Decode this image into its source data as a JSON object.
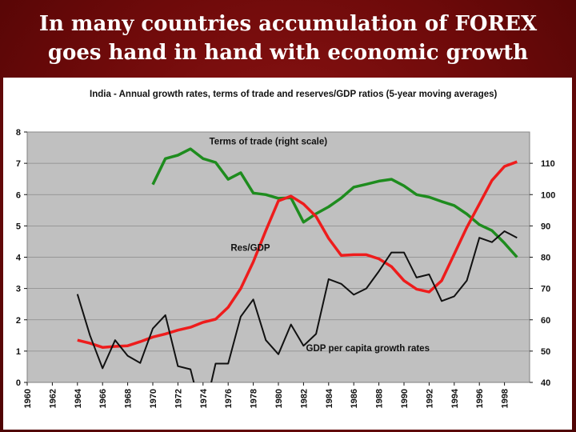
{
  "slide": {
    "title_line1": "In many countries accumulation of FOREX",
    "title_line2": "goes hand in hand with economic growth"
  },
  "chart_data": {
    "type": "line",
    "title": "India  - Annual growth rates, terms of trade and reserves/GDP ratios (5-year moving averages)",
    "x_ticks": [
      "1960",
      "1962",
      "1964",
      "1966",
      "1968",
      "1970",
      "1972",
      "1974",
      "1976",
      "1978",
      "1980",
      "1982",
      "1984",
      "1986",
      "1988",
      "1990",
      "1992",
      "1994",
      "1996",
      "1998"
    ],
    "xlim": [
      1960,
      2000
    ],
    "ylim_left": [
      0,
      8
    ],
    "y_ticks_left": [
      "0",
      "1",
      "2",
      "3",
      "4",
      "5",
      "6",
      "7",
      "8"
    ],
    "ylim_right": [
      40,
      120
    ],
    "y_ticks_right": [
      "40",
      "50",
      "60",
      "70",
      "80",
      "90",
      "100",
      "110"
    ],
    "grid": "horizontal",
    "background": "#c0c0c0",
    "series": [
      {
        "name": "Terms of trade (right scale)",
        "axis": "right",
        "color": "#1e8c1e",
        "x": [
          1970,
          1971,
          1972,
          1973,
          1974,
          1975,
          1976,
          1977,
          1978,
          1979,
          1980,
          1981,
          1982,
          1983,
          1984,
          1985,
          1986,
          1987,
          1988,
          1989,
          1990,
          1991,
          1992,
          1993,
          1994,
          1995,
          1996,
          1997,
          1998,
          1999
        ],
        "y": [
          103.2,
          111.5,
          112.6,
          114.6,
          111.5,
          110.3,
          104.9,
          107.0,
          100.5,
          100.0,
          98.8,
          99.0,
          91.2,
          93.9,
          96.1,
          98.9,
          102.4,
          103.3,
          104.3,
          104.9,
          102.8,
          100.0,
          99.2,
          97.8,
          96.5,
          93.8,
          90.4,
          88.5,
          84.5,
          80.0
        ]
      },
      {
        "name": "Res/GDP",
        "axis": "left",
        "color": "#ee1c1c",
        "x": [
          1964,
          1965,
          1966,
          1967,
          1968,
          1969,
          1970,
          1971,
          1972,
          1973,
          1974,
          1975,
          1976,
          1977,
          1978,
          1979,
          1980,
          1981,
          1982,
          1983,
          1984,
          1985,
          1986,
          1987,
          1988,
          1989,
          1990,
          1991,
          1992,
          1993,
          1994,
          1995,
          1996,
          1997,
          1998,
          1999
        ],
        "y": [
          1.35,
          1.25,
          1.12,
          1.15,
          1.17,
          1.3,
          1.45,
          1.55,
          1.67,
          1.76,
          1.92,
          2.02,
          2.4,
          3.0,
          3.85,
          4.85,
          5.8,
          5.95,
          5.7,
          5.3,
          4.6,
          4.06,
          4.08,
          4.08,
          3.95,
          3.7,
          3.25,
          2.98,
          2.89,
          3.25,
          4.1,
          4.95,
          5.7,
          6.45,
          6.9,
          7.05
        ]
      },
      {
        "name": "GDP per capita growth rates",
        "axis": "left",
        "color": "#111111",
        "x": [
          1964,
          1965,
          1966,
          1967,
          1968,
          1969,
          1970,
          1971,
          1972,
          1973,
          1974,
          1975,
          1976,
          1977,
          1978,
          1979,
          1980,
          1981,
          1982,
          1983,
          1984,
          1985,
          1986,
          1987,
          1988,
          1989,
          1990,
          1991,
          1992,
          1993,
          1994,
          1995,
          1996,
          1997,
          1998,
          1999
        ],
        "y": [
          2.82,
          1.5,
          0.45,
          1.35,
          0.85,
          0.62,
          1.72,
          2.15,
          0.52,
          0.42,
          -1.15,
          0.6,
          0.6,
          2.1,
          2.65,
          1.35,
          0.9,
          1.85,
          1.17,
          1.55,
          3.3,
          3.15,
          2.8,
          3.0,
          3.55,
          4.15,
          4.15,
          3.35,
          3.45,
          2.6,
          2.75,
          3.25,
          4.62,
          4.48,
          4.83,
          4.62
        ]
      }
    ],
    "annotations": [
      {
        "text": "Terms of trade (right scale)",
        "x": 1974.5,
        "y_left": 7.6
      },
      {
        "text": "Res/GDP",
        "x": 1976.2,
        "y_left": 4.2
      },
      {
        "text": "GDP per capita growth rates",
        "x": 1982.2,
        "y_left": 1.0
      }
    ]
  }
}
